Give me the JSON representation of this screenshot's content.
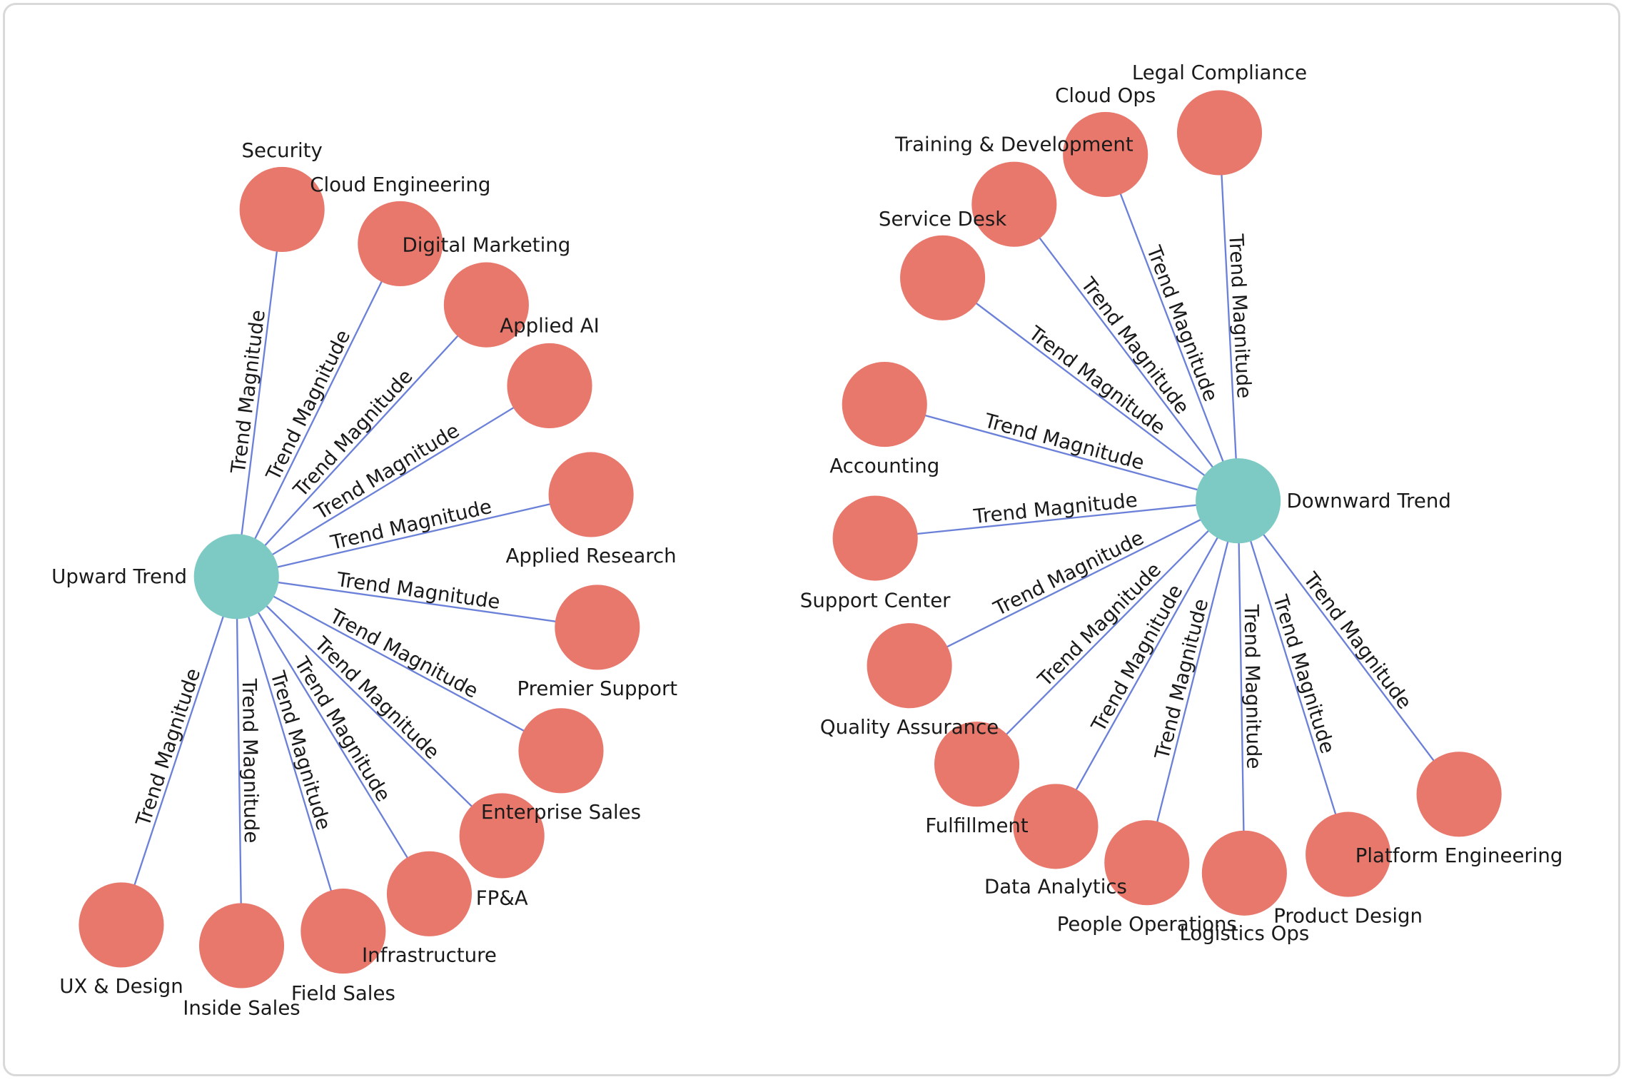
{
  "clusters": [
    {
      "hub": {
        "label": "Upward Trend"
      },
      "children": [
        {
          "label": "Security",
          "edge_label": "Trend Magnitude"
        },
        {
          "label": "Cloud Engineering",
          "edge_label": "Trend Magnitude"
        },
        {
          "label": "Digital Marketing",
          "edge_label": "Trend Magnitude"
        },
        {
          "label": "Applied AI",
          "edge_label": "Trend Magnitude"
        },
        {
          "label": "Applied Research",
          "edge_label": "Trend Magnitude"
        },
        {
          "label": "Premier Support",
          "edge_label": "Trend Magnitude"
        },
        {
          "label": "Enterprise Sales",
          "edge_label": "Trend Magnitude"
        },
        {
          "label": "FP&A",
          "edge_label": "Trend Magnitude"
        },
        {
          "label": "Infrastructure",
          "edge_label": "Trend Magnitude"
        },
        {
          "label": "Field Sales",
          "edge_label": "Trend Magnitude"
        },
        {
          "label": "Inside Sales",
          "edge_label": "Trend Magnitude"
        },
        {
          "label": "UX & Design",
          "edge_label": "Trend Magnitude"
        }
      ]
    },
    {
      "hub": {
        "label": "Downward Trend"
      },
      "children": [
        {
          "label": "Legal Compliance",
          "edge_label": "Trend Magnitude"
        },
        {
          "label": "Cloud Ops",
          "edge_label": "Trend Magnitude"
        },
        {
          "label": "Training & Development",
          "edge_label": "Trend Magnitude"
        },
        {
          "label": "Service Desk",
          "edge_label": "Trend Magnitude"
        },
        {
          "label": "Accounting",
          "edge_label": "Trend Magnitude"
        },
        {
          "label": "Support Center",
          "edge_label": "Trend Magnitude"
        },
        {
          "label": "Quality Assurance",
          "edge_label": "Trend Magnitude"
        },
        {
          "label": "Fulfillment",
          "edge_label": "Trend Magnitude"
        },
        {
          "label": "Data Analytics",
          "edge_label": "Trend Magnitude"
        },
        {
          "label": "People Operations",
          "edge_label": "Trend Magnitude"
        },
        {
          "label": "Logistics Ops",
          "edge_label": "Trend Magnitude"
        },
        {
          "label": "Product Design",
          "edge_label": "Trend Magnitude"
        },
        {
          "label": "Platform Engineering",
          "edge_label": "Trend Magnitude"
        }
      ]
    }
  ]
}
